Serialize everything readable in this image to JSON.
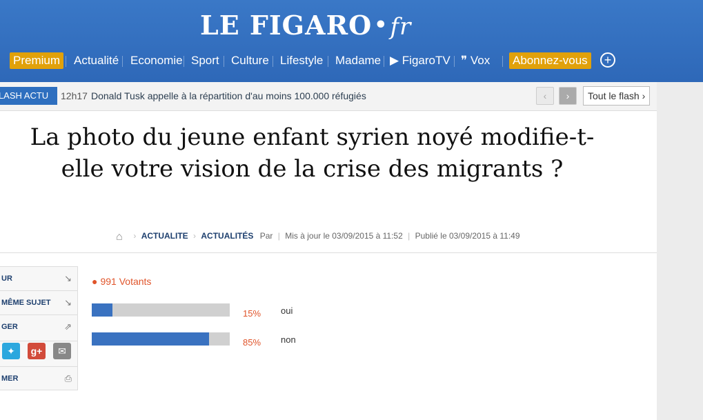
{
  "header": {
    "logo_main": "LE FIGARO",
    "logo_dot": "•",
    "logo_fr": "fr"
  },
  "nav": {
    "premium": "Premium",
    "items": [
      "Actualité",
      "Economie",
      "Sport",
      "Culture",
      "Lifestyle",
      "Madame",
      "▶ FigaroTV",
      "❞ Vox"
    ],
    "abonnez": "Abonnez-vous",
    "plus": "+"
  },
  "flash": {
    "label": "FLASH ACTU",
    "time": "12h17",
    "text": "Donald Tusk appelle à la répartition d'au moins 100.000 réfugiés",
    "prev": "‹",
    "next": "›",
    "tout": "Tout le flash ›"
  },
  "article": {
    "title": "La photo du jeune enfant syrien noyé modifie-t-elle votre vision de la crise des migrants ?",
    "breadcrumb_1": "ACTUALITE",
    "breadcrumb_2": "ACTUALITÉS",
    "par": "Par",
    "updated": "Mis à jour le 03/09/2015 à 11:52",
    "published": "Publié le 03/09/2015 à 11:49"
  },
  "sidebar": {
    "items": [
      "UR",
      "MÊME SUJET",
      "GER",
      "MER"
    ]
  },
  "poll": {
    "votants": "991 Votants",
    "options": [
      {
        "pct_label": "15%",
        "answer": "oui",
        "fraction": 0.15
      },
      {
        "pct_label": "85%",
        "answer": "non",
        "fraction": 0.85
      }
    ]
  }
}
